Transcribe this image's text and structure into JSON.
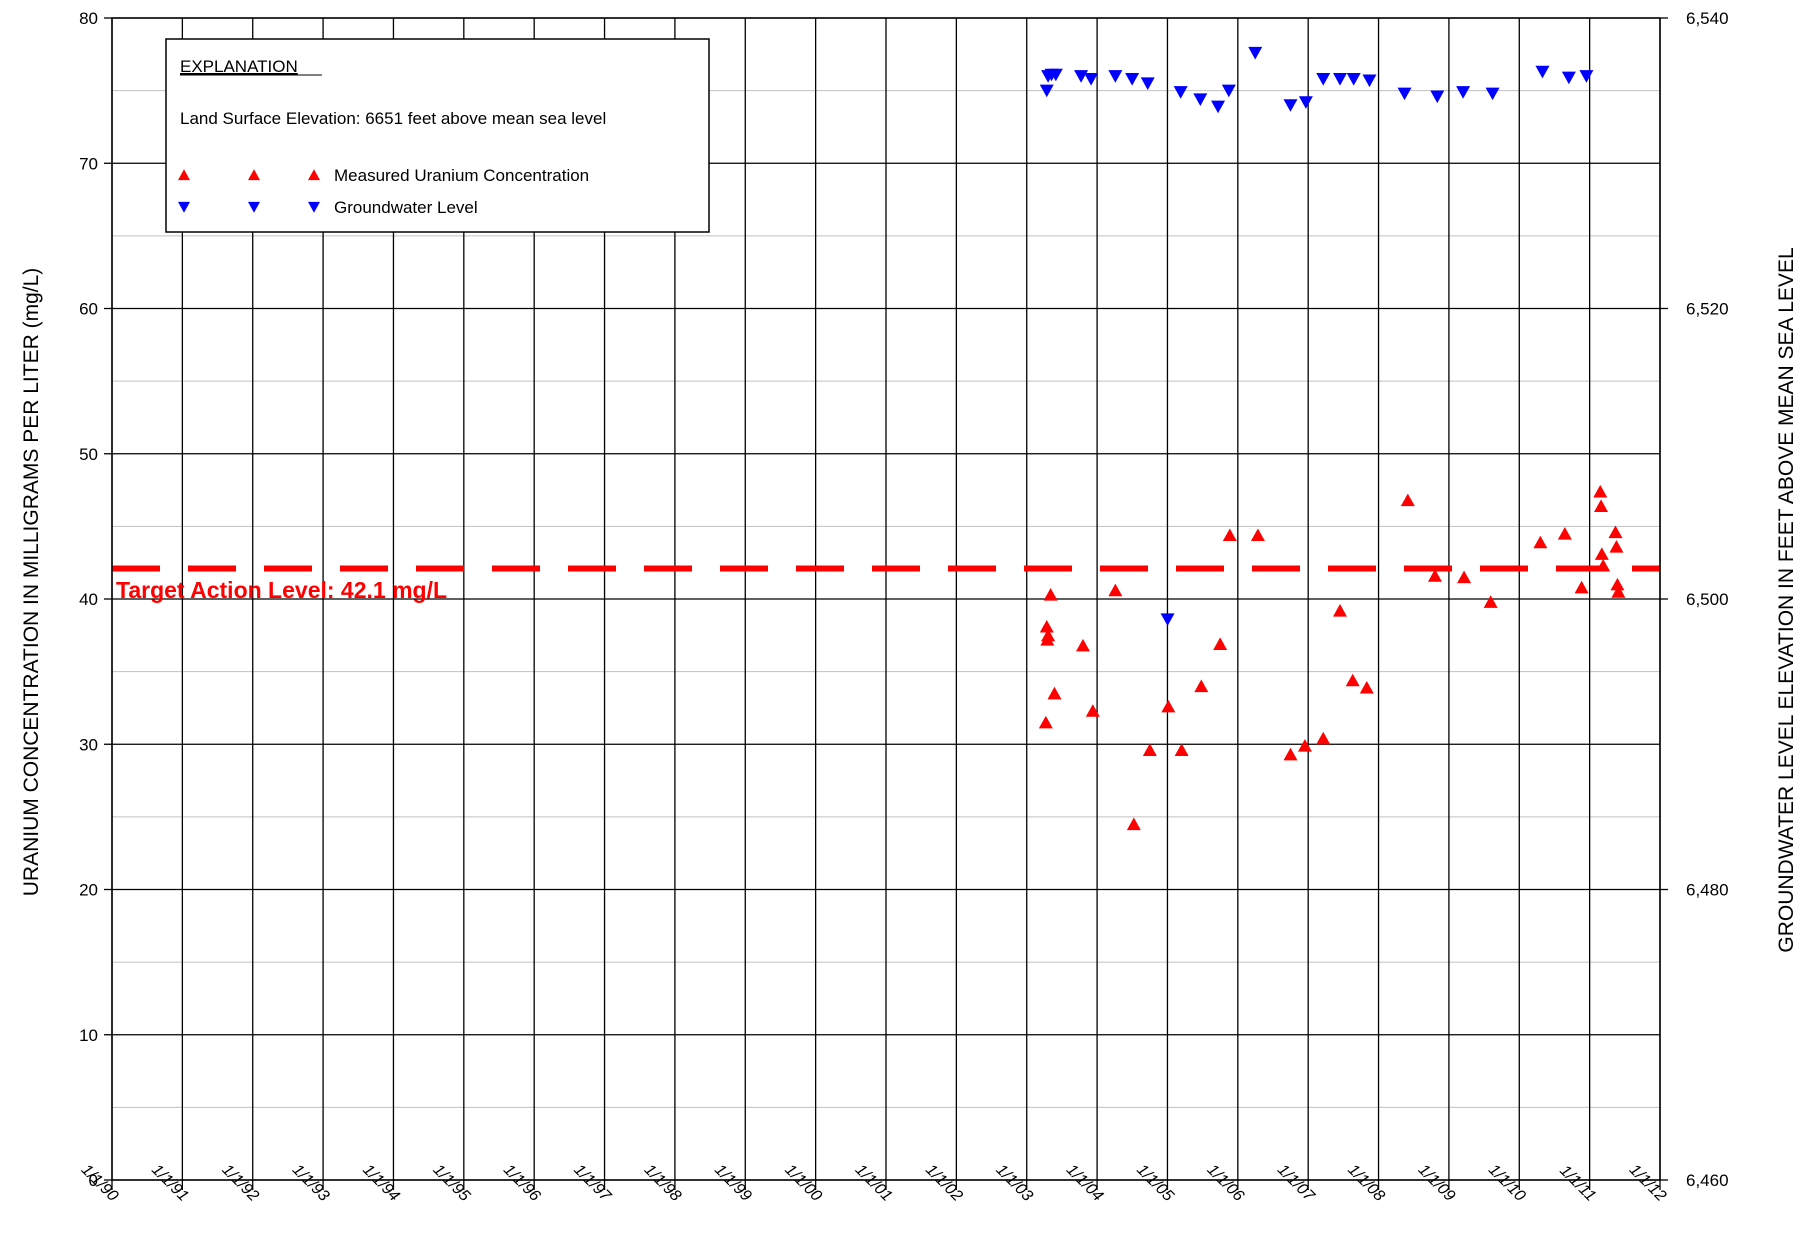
{
  "chart_data": {
    "type": "scatter",
    "x_axis": {
      "type": "date",
      "range": [
        "1990-01-01",
        "2012-01-01"
      ],
      "tick_labels": [
        "1/1/90",
        "1/1/91",
        "1/1/92",
        "1/1/93",
        "1/1/94",
        "1/1/95",
        "1/1/96",
        "1/1/97",
        "1/1/98",
        "1/1/99",
        "1/1/00",
        "1/1/01",
        "1/1/02",
        "1/1/03",
        "1/1/04",
        "1/1/05",
        "1/1/06",
        "1/1/07",
        "1/1/08",
        "1/1/09",
        "1/1/10",
        "1/1/11",
        "1/1/12"
      ],
      "grid": true
    },
    "y_axis_left": {
      "label": "URANIUM CONCENTRATION IN MILLIGRAMS PER LITER (mg/L)",
      "range": [
        0,
        80
      ],
      "tick_values": [
        0,
        10,
        20,
        30,
        40,
        50,
        60,
        70,
        80
      ],
      "tick_labels": [
        "0",
        "10",
        "20",
        "30",
        "40",
        "50",
        "60",
        "70",
        "80"
      ],
      "minor_step": 5,
      "grid": true
    },
    "y_axis_right": {
      "label": "GROUNDWATER LEVEL ELEVATION IN FEET ABOVE MEAN SEA LEVEL",
      "range": [
        6460,
        6540
      ],
      "tick_values": [
        6460,
        6480,
        6500,
        6520,
        6540
      ],
      "tick_labels": [
        "6,460",
        "6,480",
        "6,500",
        "6,520",
        "6,540"
      ]
    },
    "legend": {
      "title": "EXPLANATION",
      "note": "Land Surface Elevation:  6651 feet above mean sea level",
      "placement": "top-left",
      "entries": [
        "Measured Uranium Concentration",
        "Groundwater Level"
      ]
    },
    "reference_line": {
      "label": "Target Action Level: 42.1 mg/L",
      "value": 42.1,
      "style": "dashed",
      "color": "#ff0000"
    },
    "series": [
      {
        "name": "Measured Uranium Concentration",
        "axis": "left",
        "marker": "triangle-up",
        "color": "#ff0000",
        "points": [
          {
            "x": "2003-04-10",
            "y": 31.5
          },
          {
            "x": "2003-04-15",
            "y": 38.1
          },
          {
            "x": "2003-04-18",
            "y": 37.2
          },
          {
            "x": "2003-04-22",
            "y": 37.5
          },
          {
            "x": "2003-05-05",
            "y": 40.3
          },
          {
            "x": "2003-05-25",
            "y": 33.5
          },
          {
            "x": "2003-10-20",
            "y": 36.8
          },
          {
            "x": "2003-12-10",
            "y": 32.3
          },
          {
            "x": "2004-04-05",
            "y": 40.6
          },
          {
            "x": "2004-07-10",
            "y": 24.5
          },
          {
            "x": "2004-10-01",
            "y": 29.6
          },
          {
            "x": "2005-01-05",
            "y": 32.6
          },
          {
            "x": "2005-03-15",
            "y": 29.6
          },
          {
            "x": "2005-06-25",
            "y": 34.0
          },
          {
            "x": "2005-10-01",
            "y": 36.9
          },
          {
            "x": "2005-11-20",
            "y": 44.4
          },
          {
            "x": "2006-04-15",
            "y": 44.4
          },
          {
            "x": "2006-10-01",
            "y": 29.3
          },
          {
            "x": "2006-12-15",
            "y": 29.9
          },
          {
            "x": "2007-03-20",
            "y": 30.4
          },
          {
            "x": "2007-06-15",
            "y": 39.2
          },
          {
            "x": "2007-08-20",
            "y": 34.4
          },
          {
            "x": "2007-11-01",
            "y": 33.9
          },
          {
            "x": "2008-06-01",
            "y": 46.8
          },
          {
            "x": "2008-10-20",
            "y": 41.6
          },
          {
            "x": "2009-03-20",
            "y": 41.5
          },
          {
            "x": "2009-08-05",
            "y": 39.8
          },
          {
            "x": "2010-04-20",
            "y": 43.9
          },
          {
            "x": "2010-08-25",
            "y": 44.5
          },
          {
            "x": "2010-11-20",
            "y": 40.8
          },
          {
            "x": "2011-02-25",
            "y": 47.4
          },
          {
            "x": "2011-03-01",
            "y": 46.4
          },
          {
            "x": "2011-03-05",
            "y": 43.1
          },
          {
            "x": "2011-03-12",
            "y": 42.3
          },
          {
            "x": "2011-05-15",
            "y": 44.6
          },
          {
            "x": "2011-05-20",
            "y": 43.6
          },
          {
            "x": "2011-05-25",
            "y": 41.0
          },
          {
            "x": "2011-05-30",
            "y": 40.5
          }
        ]
      },
      {
        "name": "Groundwater Level",
        "axis": "right",
        "marker": "triangle-down",
        "color": "#0000ff",
        "points": [
          {
            "x": "2003-04-15",
            "y": 6535.0
          },
          {
            "x": "2003-04-22",
            "y": 6536.0
          },
          {
            "x": "2003-05-10",
            "y": 6536.1
          },
          {
            "x": "2003-06-01",
            "y": 6536.1
          },
          {
            "x": "2003-10-10",
            "y": 6536.0
          },
          {
            "x": "2003-12-01",
            "y": 6535.8
          },
          {
            "x": "2004-04-05",
            "y": 6536.0
          },
          {
            "x": "2004-07-01",
            "y": 6535.8
          },
          {
            "x": "2004-09-20",
            "y": 6535.5
          },
          {
            "x": "2005-01-01",
            "y": 6498.6
          },
          {
            "x": "2005-03-10",
            "y": 6534.9
          },
          {
            "x": "2005-06-20",
            "y": 6534.4
          },
          {
            "x": "2005-09-20",
            "y": 6533.9
          },
          {
            "x": "2005-11-15",
            "y": 6535.0
          },
          {
            "x": "2006-04-01",
            "y": 6537.6
          },
          {
            "x": "2006-10-01",
            "y": 6534.0
          },
          {
            "x": "2006-12-20",
            "y": 6534.2
          },
          {
            "x": "2007-03-20",
            "y": 6535.8
          },
          {
            "x": "2007-06-15",
            "y": 6535.8
          },
          {
            "x": "2007-08-25",
            "y": 6535.8
          },
          {
            "x": "2007-11-15",
            "y": 6535.7
          },
          {
            "x": "2008-05-15",
            "y": 6534.8
          },
          {
            "x": "2008-11-01",
            "y": 6534.6
          },
          {
            "x": "2009-03-15",
            "y": 6534.9
          },
          {
            "x": "2009-08-15",
            "y": 6534.8
          },
          {
            "x": "2010-05-01",
            "y": 6536.3
          },
          {
            "x": "2010-09-15",
            "y": 6535.9
          },
          {
            "x": "2010-12-15",
            "y": 6536.0
          }
        ]
      }
    ]
  }
}
